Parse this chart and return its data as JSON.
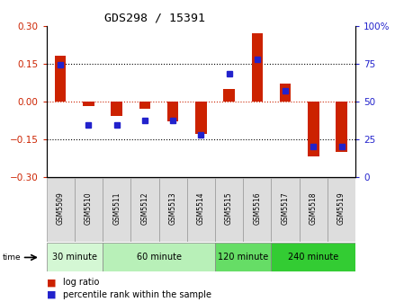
{
  "title": "GDS298 / 15391",
  "samples": [
    "GSM5509",
    "GSM5510",
    "GSM5511",
    "GSM5512",
    "GSM5513",
    "GSM5514",
    "GSM5515",
    "GSM5516",
    "GSM5517",
    "GSM5518",
    "GSM5519"
  ],
  "log_ratio": [
    0.18,
    -0.02,
    -0.06,
    -0.03,
    -0.08,
    -0.13,
    0.05,
    0.27,
    0.07,
    -0.22,
    -0.2
  ],
  "percentile": [
    74,
    34,
    34,
    37,
    37,
    28,
    68,
    78,
    57,
    20,
    20
  ],
  "groups": [
    {
      "label": "30 minute",
      "start": 0,
      "end": 2,
      "color": "#d4f7d4"
    },
    {
      "label": "60 minute",
      "start": 2,
      "end": 6,
      "color": "#b8f0b8"
    },
    {
      "label": "120 minute",
      "start": 6,
      "end": 8,
      "color": "#66dd66"
    },
    {
      "label": "240 minute",
      "start": 8,
      "end": 11,
      "color": "#33cc33"
    }
  ],
  "ylim": [
    -0.3,
    0.3
  ],
  "yticks_left": [
    -0.3,
    -0.15,
    0,
    0.15,
    0.3
  ],
  "yticks_right": [
    0,
    25,
    50,
    75,
    100
  ],
  "bar_color": "#cc2200",
  "dot_color": "#2222cc",
  "zero_line_color": "#cc2200",
  "legend_lr": "log ratio",
  "legend_pr": "percentile rank within the sample"
}
